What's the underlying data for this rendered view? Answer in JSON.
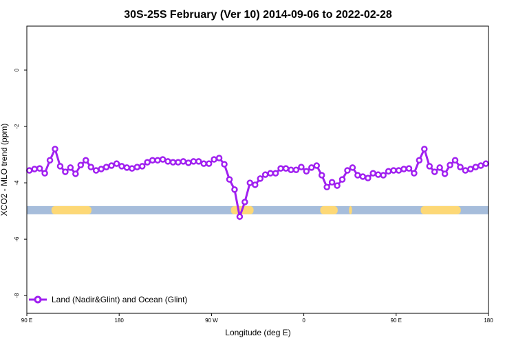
{
  "chart_data": {
    "type": "line",
    "title": "30S-25S February (Ver 10)   2014-09-06 to 2022-02-28",
    "xlabel": "Longitude (deg E)",
    "ylabel": "XCO2 - MLO trend (ppm)",
    "xlim": [
      90,
      540
    ],
    "ylim": [
      -8.63,
      1.56
    ],
    "xticks": [
      {
        "value": 90,
        "label": "90 E"
      },
      {
        "value": 180,
        "label": "180"
      },
      {
        "value": 270,
        "label": "90 W"
      },
      {
        "value": 360,
        "label": "0"
      },
      {
        "value": 450,
        "label": "90 E"
      },
      {
        "value": 540,
        "label": "180"
      }
    ],
    "yticks": [
      {
        "value": 0,
        "label": "0"
      },
      {
        "value": -2,
        "label": "-2"
      },
      {
        "value": -4,
        "label": "-4"
      },
      {
        "value": -6,
        "label": "-6"
      },
      {
        "value": -8,
        "label": "-8"
      }
    ],
    "legend": {
      "label": "Land (Nadir&Glint) and Ocean (Glint)",
      "placement": "bottom-left"
    },
    "series": [
      {
        "name": "Land (Nadir&Glint) and Ocean (Glint)",
        "color": "#a020f0",
        "x_start": 92.5,
        "x_step": 5,
        "values": [
          -3.56,
          -3.51,
          -3.49,
          -3.66,
          -3.2,
          -2.8,
          -3.41,
          -3.61,
          -3.46,
          -3.68,
          -3.37,
          -3.2,
          -3.44,
          -3.56,
          -3.51,
          -3.44,
          -3.39,
          -3.32,
          -3.41,
          -3.46,
          -3.49,
          -3.44,
          -3.41,
          -3.27,
          -3.2,
          -3.2,
          -3.17,
          -3.24,
          -3.27,
          -3.27,
          -3.24,
          -3.29,
          -3.24,
          -3.24,
          -3.32,
          -3.32,
          -3.17,
          -3.12,
          -3.34,
          -3.88,
          -4.24,
          -5.2,
          -4.68,
          -4.0,
          -4.07,
          -3.85,
          -3.71,
          -3.66,
          -3.66,
          -3.49,
          -3.49,
          -3.54,
          -3.54,
          -3.44,
          -3.59,
          -3.46,
          -3.39,
          -3.73,
          -4.15,
          -3.98,
          -4.1,
          -3.88,
          -3.56,
          -3.46,
          -3.73,
          -3.78,
          -3.83,
          -3.66,
          -3.71,
          -3.73,
          -3.59,
          -3.56,
          -3.56,
          -3.51,
          -3.49,
          -3.66,
          -3.2,
          -2.8,
          -3.41,
          -3.61,
          -3.46,
          -3.68,
          -3.37,
          -3.2,
          -3.44,
          -3.56,
          -3.51,
          -3.44,
          -3.39,
          -3.32
        ]
      }
    ],
    "surface_band": {
      "y": -4.97,
      "ocean_color": "#a6bddb",
      "land_color": "#fdd876",
      "land_segments": [
        [
          114,
          153
        ],
        [
          289,
          311
        ],
        [
          376,
          393
        ],
        [
          404,
          407
        ],
        [
          474,
          513
        ]
      ]
    }
  }
}
